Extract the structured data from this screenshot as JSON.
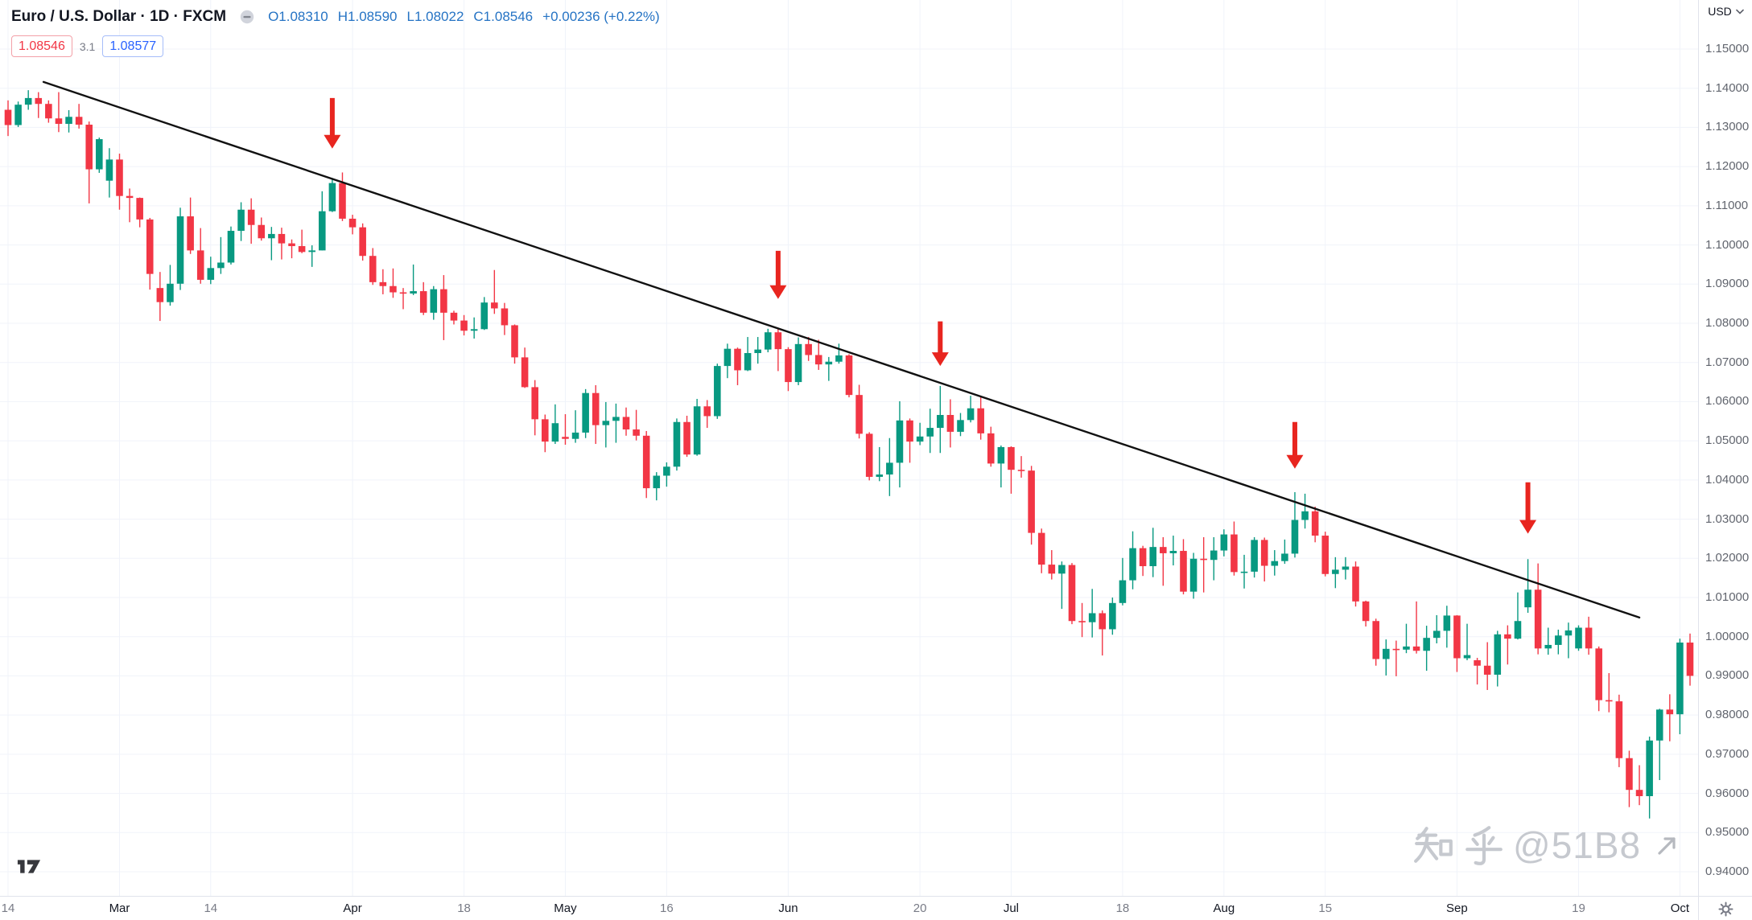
{
  "header": {
    "symbol_title": "Euro / U.S. Dollar · 1D · FXCM",
    "values": {
      "open": "O1.08310",
      "high": "H1.08590",
      "low": "L1.08022",
      "close": "C1.08546",
      "change": "+0.00236 (+0.22%)"
    },
    "value_color": "#2573c4"
  },
  "price_labels": {
    "sell": "1.08546",
    "spread": "3.1",
    "buy": "1.08577",
    "sell_color": "#f23645",
    "buy_color": "#2962ff"
  },
  "price_scale": {
    "currency": "USD",
    "ticks": [
      "1.15000",
      "1.14000",
      "1.13000",
      "1.12000",
      "1.11000",
      "1.10000",
      "1.09000",
      "1.08000",
      "1.07000",
      "1.06000",
      "1.05000",
      "1.04000",
      "1.03000",
      "1.02000",
      "1.01000",
      "1.00000",
      "0.99000",
      "0.98000",
      "0.97000",
      "0.96000",
      "0.95000",
      "0.94000"
    ]
  },
  "time_scale": {
    "labels": [
      {
        "text": "14",
        "index": 0,
        "type": "day"
      },
      {
        "text": "Mar",
        "index": 11,
        "type": "month"
      },
      {
        "text": "14",
        "index": 20,
        "type": "day"
      },
      {
        "text": "Apr",
        "index": 34,
        "type": "month"
      },
      {
        "text": "18",
        "index": 45,
        "type": "day"
      },
      {
        "text": "May",
        "index": 55,
        "type": "month"
      },
      {
        "text": "16",
        "index": 65,
        "type": "day"
      },
      {
        "text": "Jun",
        "index": 77,
        "type": "month"
      },
      {
        "text": "20",
        "index": 90,
        "type": "day"
      },
      {
        "text": "Jul",
        "index": 99,
        "type": "month"
      },
      {
        "text": "18",
        "index": 110,
        "type": "day"
      },
      {
        "text": "Aug",
        "index": 120,
        "type": "month"
      },
      {
        "text": "15",
        "index": 130,
        "type": "day"
      },
      {
        "text": "Sep",
        "index": 143,
        "type": "month"
      },
      {
        "text": "19",
        "index": 155,
        "type": "day"
      },
      {
        "text": "Oct",
        "index": 165,
        "type": "month"
      }
    ]
  },
  "watermark": {
    "text_cjk": "知乎",
    "text_handle": "@51B8"
  },
  "chart_data": {
    "type": "candlestick",
    "title": "Euro / U.S. Dollar",
    "symbol": "EUR/USD",
    "interval": "1D",
    "exchange": "FXCM",
    "up_color": "#089981",
    "down_color": "#f23645",
    "grid_color": "#f0f3fa",
    "arrow_color": "#e8251f",
    "y_axis": {
      "min": 0.94,
      "max": 1.15,
      "tick_step": 0.01
    },
    "candle_format": "[open, high, low, close]",
    "candles": [
      [
        1.1345,
        1.1369,
        1.1278,
        1.1306
      ],
      [
        1.1306,
        1.1366,
        1.1301,
        1.1358
      ],
      [
        1.1358,
        1.1395,
        1.1345,
        1.1375
      ],
      [
        1.1375,
        1.139,
        1.1324,
        1.136
      ],
      [
        1.136,
        1.1369,
        1.1312,
        1.1323
      ],
      [
        1.1323,
        1.139,
        1.1288,
        1.1309
      ],
      [
        1.1309,
        1.1344,
        1.1287,
        1.1327
      ],
      [
        1.1327,
        1.136,
        1.1297,
        1.1307
      ],
      [
        1.1307,
        1.1315,
        1.1106,
        1.1193
      ],
      [
        1.1193,
        1.1274,
        1.1184,
        1.127
      ],
      [
        1.1164,
        1.1247,
        1.1121,
        1.1218
      ],
      [
        1.1218,
        1.1233,
        1.109,
        1.1125
      ],
      [
        1.1125,
        1.1144,
        1.1058,
        1.112
      ],
      [
        1.112,
        1.1121,
        1.1045,
        1.1065
      ],
      [
        1.1065,
        1.1069,
        1.0886,
        1.0926
      ],
      [
        1.089,
        1.0931,
        1.0806,
        1.0854
      ],
      [
        1.0854,
        1.0949,
        1.0845,
        1.0901
      ],
      [
        1.0901,
        1.1095,
        1.0885,
        1.1073
      ],
      [
        1.1073,
        1.1121,
        1.0977,
        1.0986
      ],
      [
        1.0986,
        1.1043,
        1.0901,
        1.0911
      ],
      [
        1.0911,
        1.097,
        1.09,
        1.0941
      ],
      [
        1.0941,
        1.102,
        1.0926,
        1.0955
      ],
      [
        1.0955,
        1.1047,
        1.095,
        1.1036
      ],
      [
        1.1036,
        1.1109,
        1.101,
        1.109
      ],
      [
        1.109,
        1.1119,
        1.1003,
        1.1051
      ],
      [
        1.1051,
        1.107,
        1.1011,
        1.1017
      ],
      [
        1.1017,
        1.1046,
        1.0961,
        1.1028
      ],
      [
        1.1028,
        1.1044,
        1.0963,
        1.1004
      ],
      [
        1.1004,
        1.1014,
        1.0966,
        1.0997
      ],
      [
        1.0997,
        1.1039,
        1.0979,
        1.0982
      ],
      [
        1.0982,
        1.0999,
        1.0944,
        1.0986
      ],
      [
        1.0986,
        1.1137,
        1.0986,
        1.1086
      ],
      [
        1.1086,
        1.1171,
        1.1084,
        1.1158
      ],
      [
        1.1158,
        1.1185,
        1.1061,
        1.1067
      ],
      [
        1.1067,
        1.1077,
        1.1027,
        1.1045
      ],
      [
        1.1045,
        1.1055,
        1.096,
        1.0972
      ],
      [
        1.0972,
        1.0992,
        1.0898,
        1.0905
      ],
      [
        1.0905,
        1.0938,
        1.0874,
        1.0895
      ],
      [
        1.0895,
        1.094,
        1.0865,
        1.0879
      ],
      [
        1.0879,
        1.089,
        1.0836,
        1.0876
      ],
      [
        1.0876,
        1.095,
        1.0872,
        1.0882
      ],
      [
        1.0882,
        1.0905,
        1.0821,
        1.0827
      ],
      [
        1.0827,
        1.0895,
        1.0809,
        1.0887
      ],
      [
        1.0887,
        1.0923,
        1.0757,
        1.0827
      ],
      [
        1.0827,
        1.0832,
        1.0797,
        1.0807
      ],
      [
        1.0807,
        1.0821,
        1.0769,
        1.0781
      ],
      [
        1.0781,
        1.0815,
        1.0761,
        1.0785
      ],
      [
        1.0785,
        1.0867,
        1.0783,
        1.0853
      ],
      [
        1.0853,
        1.0936,
        1.0824,
        1.0838
      ],
      [
        1.0838,
        1.0852,
        1.077,
        1.0795
      ],
      [
        1.0795,
        1.0797,
        1.0697,
        1.0713
      ],
      [
        1.0713,
        1.0738,
        1.0635,
        1.0637
      ],
      [
        1.0637,
        1.0655,
        1.0514,
        1.0555
      ],
      [
        1.0555,
        1.0567,
        1.0471,
        1.0498
      ],
      [
        1.0498,
        1.0593,
        1.0492,
        1.0545
      ],
      [
        1.051,
        1.0568,
        1.049,
        1.0505
      ],
      [
        1.0505,
        1.0578,
        1.0495,
        1.0521
      ],
      [
        1.0521,
        1.0632,
        1.0507,
        1.0622
      ],
      [
        1.0622,
        1.0642,
        1.0492,
        1.054
      ],
      [
        1.054,
        1.0599,
        1.0483,
        1.0551
      ],
      [
        1.0551,
        1.0595,
        1.0495,
        1.0561
      ],
      [
        1.0561,
        1.0585,
        1.0513,
        1.0529
      ],
      [
        1.0529,
        1.0579,
        1.0501,
        1.0513
      ],
      [
        1.0513,
        1.0525,
        1.0354,
        1.0379
      ],
      [
        1.0379,
        1.042,
        1.0348,
        1.0411
      ],
      [
        1.0411,
        1.0445,
        1.0383,
        1.0434
      ],
      [
        1.0434,
        1.0557,
        1.0424,
        1.0548
      ],
      [
        1.0548,
        1.0564,
        1.0459,
        1.0465
      ],
      [
        1.0465,
        1.0607,
        1.0462,
        1.0588
      ],
      [
        1.0588,
        1.0604,
        1.0533,
        1.0563
      ],
      [
        1.0563,
        1.0697,
        1.0556,
        1.0691
      ],
      [
        1.0691,
        1.0748,
        1.066,
        1.0735
      ],
      [
        1.0735,
        1.0738,
        1.0642,
        1.068
      ],
      [
        1.068,
        1.0765,
        1.0678,
        1.0724
      ],
      [
        1.0724,
        1.0765,
        1.0697,
        1.0733
      ],
      [
        1.0733,
        1.0786,
        1.0726,
        1.0777
      ],
      [
        1.0777,
        1.0787,
        1.0678,
        1.0734
      ],
      [
        1.0734,
        1.0739,
        1.0627,
        1.065
      ],
      [
        1.065,
        1.0764,
        1.0642,
        1.0747
      ],
      [
        1.0747,
        1.0765,
        1.0704,
        1.0719
      ],
      [
        1.0719,
        1.0758,
        1.0681,
        1.0695
      ],
      [
        1.0695,
        1.0714,
        1.0653,
        1.0702
      ],
      [
        1.0702,
        1.0748,
        1.0697,
        1.0718
      ],
      [
        1.0718,
        1.0721,
        1.0611,
        1.0617
      ],
      [
        1.0617,
        1.0643,
        1.0506,
        1.0518
      ],
      [
        1.0518,
        1.0522,
        1.0399,
        1.0408
      ],
      [
        1.0408,
        1.0484,
        1.0397,
        1.0414
      ],
      [
        1.0414,
        1.0507,
        1.0359,
        1.0444
      ],
      [
        1.0444,
        1.0601,
        1.0381,
        1.0552
      ],
      [
        1.0552,
        1.0557,
        1.0444,
        1.0498
      ],
      [
        1.0498,
        1.0546,
        1.0489,
        1.0511
      ],
      [
        1.0511,
        1.0582,
        1.0469,
        1.0533
      ],
      [
        1.0533,
        1.064,
        1.0469,
        1.0566
      ],
      [
        1.0566,
        1.0606,
        1.0483,
        1.0523
      ],
      [
        1.0523,
        1.0571,
        1.0512,
        1.0553
      ],
      [
        1.0553,
        1.0615,
        1.0547,
        1.0583
      ],
      [
        1.0583,
        1.0614,
        1.0503,
        1.0519
      ],
      [
        1.0519,
        1.0536,
        1.0434,
        1.0442
      ],
      [
        1.0442,
        1.0488,
        1.0381,
        1.0484
      ],
      [
        1.0484,
        1.0486,
        1.0365,
        1.0426
      ],
      [
        1.0426,
        1.0461,
        1.0406,
        1.0424
      ],
      [
        1.0424,
        1.0436,
        1.0235,
        1.0265
      ],
      [
        1.0265,
        1.0276,
        1.0162,
        1.0184
      ],
      [
        1.0184,
        1.0221,
        1.0146,
        1.0161
      ],
      [
        1.0161,
        1.0192,
        1.0071,
        1.0183
      ],
      [
        1.0183,
        1.0188,
        1.0032,
        1.004
      ],
      [
        1.004,
        1.0086,
        0.9999,
        1.0037
      ],
      [
        1.0037,
        1.0122,
        0.9998,
        1.006
      ],
      [
        1.006,
        1.0067,
        0.9952,
        1.0019
      ],
      [
        1.0019,
        1.01,
        1.0005,
        1.0086
      ],
      [
        1.0086,
        1.0201,
        1.008,
        1.0144
      ],
      [
        1.0144,
        1.0269,
        1.0121,
        1.0226
      ],
      [
        1.0226,
        1.0232,
        1.0155,
        1.018
      ],
      [
        1.018,
        1.0278,
        1.0152,
        1.0229
      ],
      [
        1.0229,
        1.0254,
        1.013,
        1.0213
      ],
      [
        1.0213,
        1.0258,
        1.0182,
        1.0219
      ],
      [
        1.0219,
        1.0249,
        1.0108,
        1.0115
      ],
      [
        1.0115,
        1.0214,
        1.0097,
        1.0199
      ],
      [
        1.0199,
        1.0254,
        1.0113,
        1.0196
      ],
      [
        1.0196,
        1.0254,
        1.0144,
        1.022
      ],
      [
        1.022,
        1.0274,
        1.0205,
        1.0261
      ],
      [
        1.0261,
        1.0294,
        1.0156,
        1.0165
      ],
      [
        1.0165,
        1.0209,
        1.0123,
        1.0166
      ],
      [
        1.0166,
        1.0254,
        1.0151,
        1.0247
      ],
      [
        1.0247,
        1.0253,
        1.0141,
        1.0181
      ],
      [
        1.0181,
        1.0221,
        1.0156,
        1.0193
      ],
      [
        1.0193,
        1.0248,
        1.0186,
        1.0212
      ],
      [
        1.0212,
        1.0369,
        1.0202,
        1.0298
      ],
      [
        1.0298,
        1.0365,
        1.0276,
        1.032
      ],
      [
        1.032,
        1.0332,
        1.0241,
        1.0258
      ],
      [
        1.0258,
        1.0268,
        1.0154,
        1.016
      ],
      [
        1.016,
        1.0203,
        1.0124,
        1.0171
      ],
      [
        1.0171,
        1.0203,
        1.0146,
        1.0179
      ],
      [
        1.0179,
        1.0192,
        1.0077,
        1.009
      ],
      [
        1.009,
        1.0092,
        1.0026,
        1.004
      ],
      [
        1.004,
        1.0046,
        0.9926,
        0.9943
      ],
      [
        0.9943,
        0.9993,
        0.9901,
        0.9969
      ],
      [
        0.9969,
        0.999,
        0.9899,
        0.9967
      ],
      [
        0.9967,
        1.0033,
        0.9958,
        0.9975
      ],
      [
        0.9975,
        1.009,
        0.9957,
        0.9964
      ],
      [
        0.9964,
        1.0028,
        0.9913,
        0.9997
      ],
      [
        0.9997,
        1.0055,
        0.9983,
        1.0015
      ],
      [
        1.0015,
        1.0079,
        0.9972,
        1.0054
      ],
      [
        1.0054,
        1.0055,
        0.991,
        0.9945
      ],
      [
        0.9945,
        1.0033,
        0.994,
        0.9953
      ],
      [
        0.994,
        0.9946,
        0.9878,
        0.9926
      ],
      [
        0.9926,
        0.9986,
        0.9864,
        0.9903
      ],
      [
        0.9903,
        1.0015,
        0.9873,
        1.0006
      ],
      [
        1.0006,
        1.0029,
        0.9929,
        0.9995
      ],
      [
        0.9995,
        1.0113,
        0.9993,
        1.004
      ],
      [
        1.0075,
        1.0198,
        1.0061,
        1.012
      ],
      [
        1.012,
        1.0187,
        0.9955,
        0.997
      ],
      [
        0.997,
        1.0023,
        0.9954,
        0.9979
      ],
      [
        0.9979,
        1.0018,
        0.9955,
        1.0003
      ],
      [
        1.0003,
        1.0036,
        0.9945,
        1.0016
      ],
      [
        0.997,
        1.0029,
        0.9964,
        1.0023
      ],
      [
        1.0023,
        1.0051,
        0.9954,
        0.997
      ],
      [
        0.997,
        0.9975,
        0.981,
        0.9838
      ],
      [
        0.9838,
        0.9907,
        0.9807,
        0.9835
      ],
      [
        0.9835,
        0.9852,
        0.9667,
        0.969
      ],
      [
        0.969,
        0.9709,
        0.9565,
        0.9609
      ],
      [
        0.9609,
        0.9672,
        0.957,
        0.9593
      ],
      [
        0.9593,
        0.9745,
        0.9536,
        0.9735
      ],
      [
        0.9735,
        0.9816,
        0.9634,
        0.9814
      ],
      [
        0.9814,
        0.9853,
        0.9733,
        0.9802
      ],
      [
        0.9802,
        0.9995,
        0.9751,
        0.9985
      ],
      [
        0.9985,
        1.0008,
        0.9875,
        0.99
      ]
    ],
    "trendline": {
      "from_index": 3.5,
      "from_price": 1.1416,
      "to_index": 161,
      "to_price": 1.0049,
      "color": "#111111"
    },
    "arrows": [
      {
        "index": 32,
        "tail_price": 1.1375,
        "tip_price": 1.1246
      },
      {
        "index": 76,
        "tail_price": 1.0985,
        "tip_price": 1.0862
      },
      {
        "index": 92,
        "tail_price": 1.0805,
        "tip_price": 1.0691
      },
      {
        "index": 127,
        "tail_price": 1.0548,
        "tip_price": 1.0429
      },
      {
        "index": 150,
        "tail_price": 1.0394,
        "tip_price": 1.0263
      }
    ]
  }
}
